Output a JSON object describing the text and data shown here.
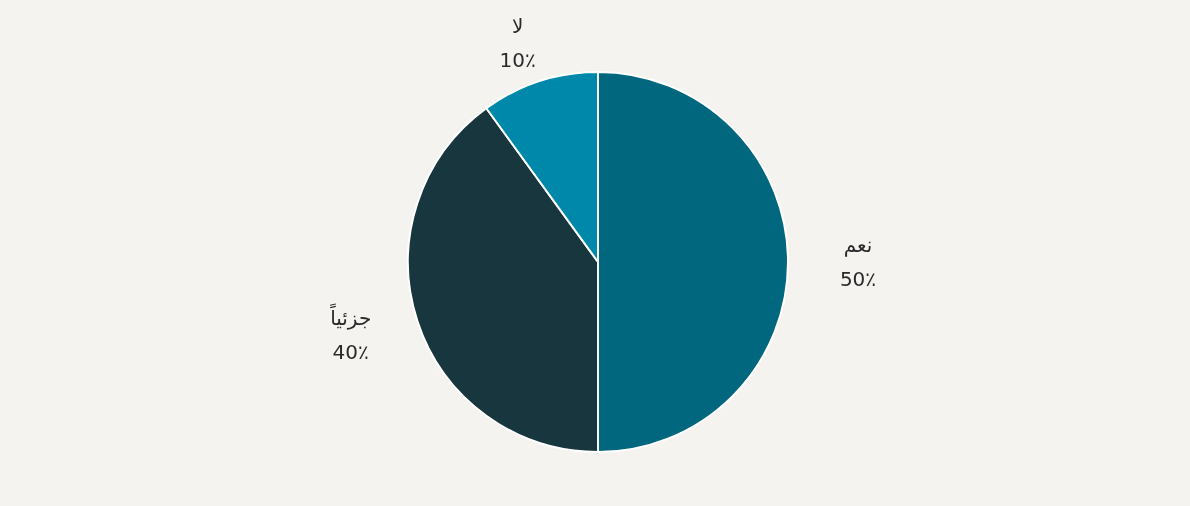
{
  "chart_data": {
    "type": "pie",
    "categories": [
      "نعم",
      "جزئياً",
      "لا"
    ],
    "values": [
      50,
      40,
      10
    ],
    "colors": [
      "#00677f",
      "#18363e",
      "#0088aa"
    ],
    "value_labels": [
      "50٪",
      "40٪",
      "10٪"
    ]
  }
}
